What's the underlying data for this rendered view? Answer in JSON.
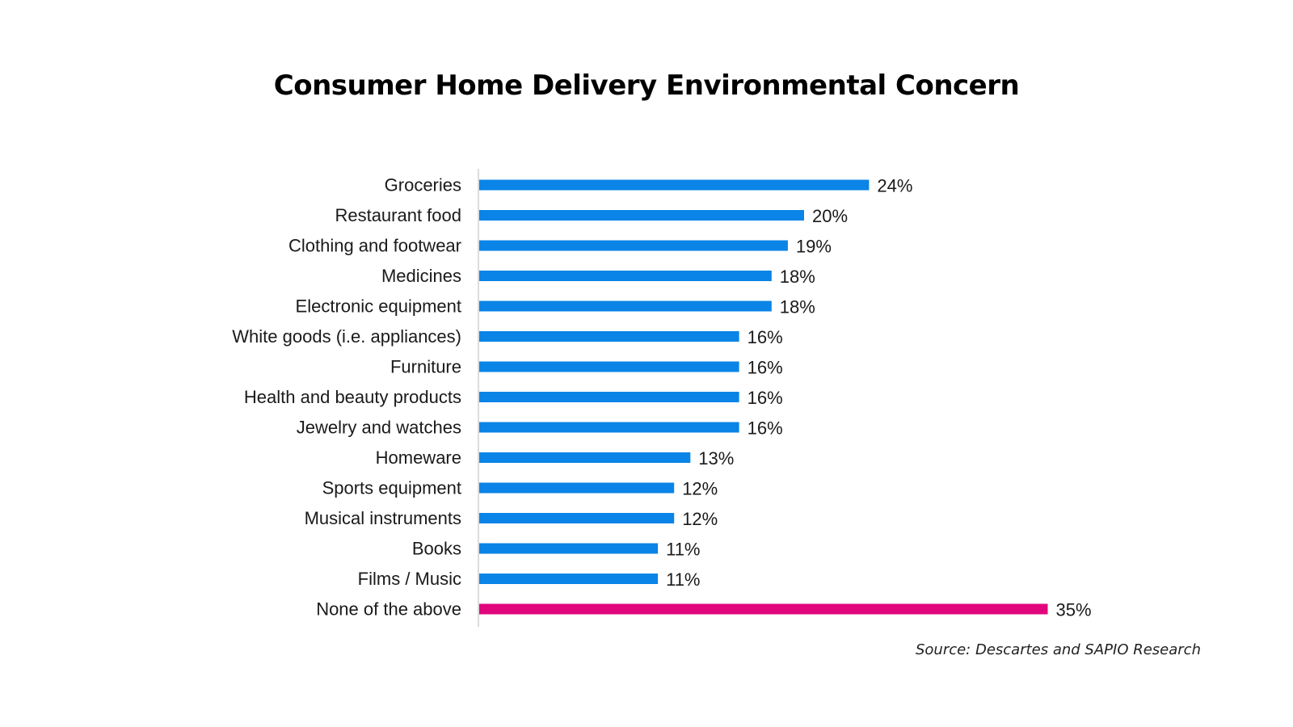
{
  "chart_data": {
    "type": "bar",
    "orientation": "horizontal",
    "title": "Consumer Home Delivery Environmental Concern",
    "categories": [
      "Groceries",
      "Restaurant food",
      "Clothing and footwear",
      "Medicines",
      "Electronic equipment",
      "White goods (i.e. appliances)",
      "Furniture",
      "Health and beauty products",
      "Jewelry and watches",
      "Homeware",
      "Sports equipment",
      "Musical instruments",
      "Books",
      "Films / Music",
      "None of the above"
    ],
    "values": [
      24,
      20,
      19,
      18,
      18,
      16,
      16,
      16,
      16,
      13,
      12,
      12,
      11,
      11,
      35
    ],
    "value_labels": [
      "24%",
      "20%",
      "19%",
      "18%",
      "18%",
      "16%",
      "16%",
      "16%",
      "16%",
      "13%",
      "12%",
      "12%",
      "11%",
      "11%",
      "35%"
    ],
    "value_unit": "%",
    "xlim": [
      0,
      35
    ],
    "xlabel": "",
    "ylabel": "",
    "grid": false,
    "legend": "none",
    "colors": {
      "default_bar": "#0a84e6",
      "highlight_bar": "#e0077d",
      "axis_line": "#d0d0d0"
    },
    "highlight_categories": [
      "None of the above"
    ]
  },
  "source": "Source: Descartes and SAPIO Research"
}
